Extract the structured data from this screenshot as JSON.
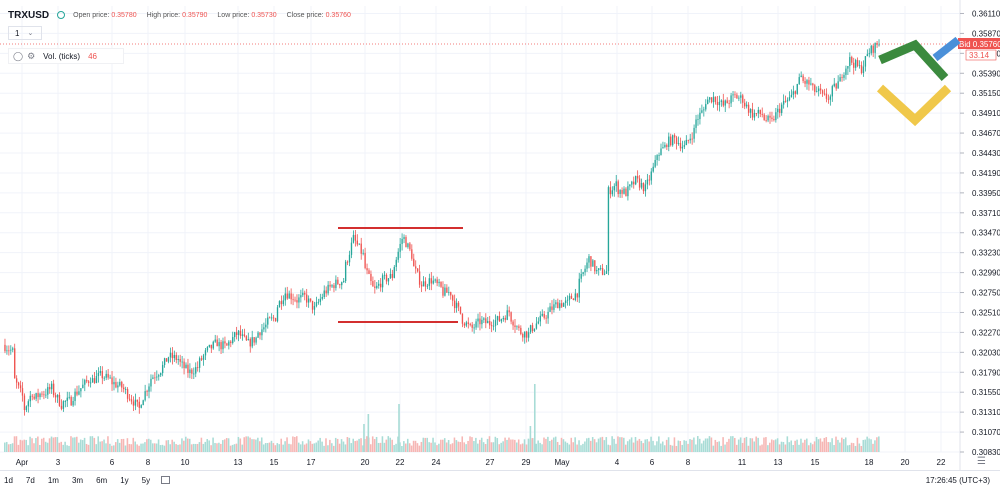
{
  "header": {
    "symbol": "TRXUSD",
    "open_label": "Open price:",
    "open_value": "0.35780",
    "high_label": "High price:",
    "high_value": "0.35790",
    "low_label": "Low price:",
    "low_value": "0.35730",
    "close_label": "Close price:",
    "close_value": "0.35760"
  },
  "interval": {
    "value": "1"
  },
  "volume_indicator": {
    "label": "Vol. (ticks)",
    "value": "46"
  },
  "price_badge": {
    "label": "Bid 0.35760",
    "subvalue": "33.14"
  },
  "bottom": {
    "ranges": [
      "1d",
      "7d",
      "1m",
      "3m",
      "6m",
      "1y",
      "5y"
    ],
    "time": "17:26:45 (UTC+3)"
  },
  "colors": {
    "up": "#26a69a",
    "down": "#ef5350",
    "annotation": "#d32f2f",
    "badge": "#ef5350"
  },
  "chart_data": {
    "type": "candlestick",
    "title": "",
    "xlabel": "",
    "ylabel": "",
    "ylim": [
      0.3083,
      0.362
    ],
    "y_ticks": [
      "0.36110",
      "0.35870",
      "0.35630",
      "0.35390",
      "0.35150",
      "0.34910",
      "0.34670",
      "0.34430",
      "0.34190",
      "0.33950",
      "0.33710",
      "0.33470",
      "0.33230",
      "0.32990",
      "0.32750",
      "0.32510",
      "0.32270",
      "0.32030",
      "0.31790",
      "0.31550",
      "0.31310",
      "0.31070",
      "0.30830"
    ],
    "x_ticks": [
      "Apr",
      "3",
      "6",
      "8",
      "10",
      "13",
      "15",
      "17",
      "20",
      "22",
      "24",
      "27",
      "29",
      "May",
      "4",
      "6",
      "8",
      "11",
      "13",
      "15",
      "18",
      "20",
      "22"
    ],
    "close_path": [
      [
        0.3212,
        0.3204
      ],
      [
        0.3174,
        0.315
      ],
      [
        0.313,
        0.3155
      ],
      [
        0.3145,
        0.3155
      ],
      [
        0.3152,
        0.316
      ],
      [
        0.3158,
        0.314
      ],
      [
        0.3142,
        0.3145
      ],
      [
        0.3148,
        0.316
      ],
      [
        0.316,
        0.3172
      ],
      [
        0.3168,
        0.3175
      ],
      [
        0.3176,
        0.317
      ],
      [
        0.3168,
        0.3162
      ],
      [
        0.3164,
        0.315
      ],
      [
        0.315,
        0.3135
      ],
      [
        0.314,
        0.3165
      ],
      [
        0.317,
        0.318
      ],
      [
        0.3178,
        0.3198
      ],
      [
        0.3198,
        0.3195
      ],
      [
        0.3192,
        0.318
      ],
      [
        0.3178,
        0.3185
      ],
      [
        0.3188,
        0.3205
      ],
      [
        0.3205,
        0.3215
      ],
      [
        0.3212,
        0.321
      ],
      [
        0.3212,
        0.3225
      ],
      [
        0.3228,
        0.3215
      ],
      [
        0.3212,
        0.322
      ],
      [
        0.3225,
        0.3235
      ],
      [
        0.3238,
        0.3245
      ],
      [
        0.3255,
        0.3275
      ],
      [
        0.3275,
        0.3268
      ],
      [
        0.3265,
        0.327
      ],
      [
        0.327,
        0.3255
      ],
      [
        0.3255,
        0.3275
      ],
      [
        0.3275,
        0.3285
      ],
      [
        0.3285,
        0.329
      ],
      [
        0.33,
        0.334
      ],
      [
        0.334,
        0.332
      ],
      [
        0.331,
        0.328
      ],
      [
        0.3275,
        0.329
      ],
      [
        0.329,
        0.3295
      ],
      [
        0.33,
        0.334
      ],
      [
        0.3345,
        0.332
      ],
      [
        0.331,
        0.3285
      ],
      [
        0.3285,
        0.329
      ],
      [
        0.329,
        0.328
      ],
      [
        0.3275,
        0.3275
      ],
      [
        0.327,
        0.325
      ],
      [
        0.3245,
        0.3232
      ],
      [
        0.323,
        0.324
      ],
      [
        0.324,
        0.3238
      ],
      [
        0.324,
        0.3242
      ],
      [
        0.3242,
        0.3252
      ],
      [
        0.3248,
        0.323
      ],
      [
        0.3228,
        0.3225
      ],
      [
        0.3228,
        0.324
      ],
      [
        0.324,
        0.325
      ],
      [
        0.3252,
        0.3262
      ],
      [
        0.3262,
        0.3262
      ],
      [
        0.3265,
        0.3275
      ],
      [
        0.328,
        0.331
      ],
      [
        0.332,
        0.33
      ],
      [
        0.33,
        0.33
      ],
      [
        0.3395,
        0.3405
      ],
      [
        0.34,
        0.3395
      ],
      [
        0.3395,
        0.341
      ],
      [
        0.341,
        0.34
      ],
      [
        0.34,
        0.343
      ],
      [
        0.344,
        0.345
      ],
      [
        0.3455,
        0.346
      ],
      [
        0.346,
        0.345
      ],
      [
        0.345,
        0.347
      ],
      [
        0.348,
        0.3495
      ],
      [
        0.3505,
        0.351
      ],
      [
        0.351,
        0.35
      ],
      [
        0.35,
        0.351
      ],
      [
        0.3512,
        0.3508
      ],
      [
        0.3505,
        0.349
      ],
      [
        0.349,
        0.349
      ],
      [
        0.3485,
        0.348
      ],
      [
        0.3482,
        0.35
      ],
      [
        0.35,
        0.351
      ],
      [
        0.351,
        0.3535
      ],
      [
        0.353,
        0.3525
      ],
      [
        0.352,
        0.3515
      ],
      [
        0.351,
        0.351
      ],
      [
        0.3515,
        0.353
      ],
      [
        0.3535,
        0.3555
      ],
      [
        0.3555,
        0.3545
      ],
      [
        0.354,
        0.3565
      ],
      [
        0.3565,
        0.3576
      ]
    ],
    "volume_spikes": [
      [
        0.415,
        30
      ],
      [
        0.45,
        40
      ],
      [
        0.605,
        60
      ],
      [
        0.41,
        20
      ],
      [
        0.6,
        18
      ]
    ]
  }
}
